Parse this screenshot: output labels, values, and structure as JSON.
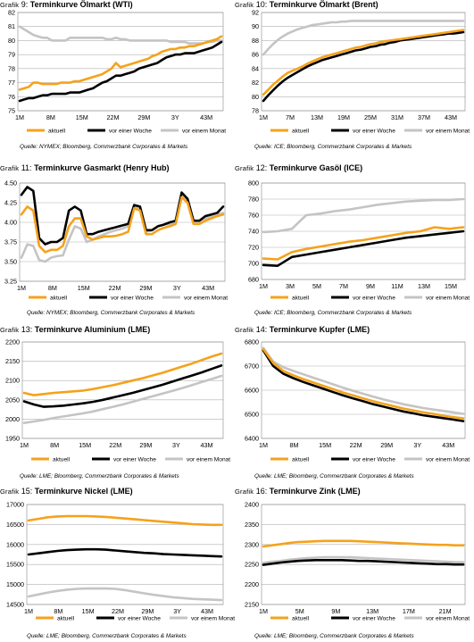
{
  "legend_labels": [
    "aktuell",
    "vor einer Woche",
    "vor einem Monat"
  ],
  "colors": {
    "aktuell": "#f5a21b",
    "vor einer Woche": "#000000",
    "vor einem Monat": "#c4c4c4",
    "grid": "#b0b0b0"
  },
  "panels": [
    {
      "id": "p9",
      "title_prefix": "Grafik",
      "title_number": "9:",
      "title_text": "Terminkurve Ölmarkt (WTI)",
      "source": "Quelle: NYMEX; Bloomberg, Commerzbank Corporates & Markets"
    },
    {
      "id": "p10",
      "title_prefix": "Grafik",
      "title_number": "10:",
      "title_text": "Terminkurve Ölmarkt (Brent)",
      "source": "Quelle: ICE; Bloomberg, Commerzbank Corporates & Markets"
    },
    {
      "id": "p11",
      "title_prefix": "Grafik",
      "title_number": "11:",
      "title_text": "Terminkurve Gasmarkt (Henry Hub)",
      "source": "Quelle: NYMEX; Bloomberg, Commerzbank Corporates & Markets"
    },
    {
      "id": "p12",
      "title_prefix": "Grafik",
      "title_number": "12:",
      "title_text": "Terminkurve Gasöl (ICE)",
      "source": "Quelle: ICE; Bloomberg, Commerzbank Corporates & Markets"
    },
    {
      "id": "p13",
      "title_prefix": "Grafik",
      "title_number": "13:",
      "title_text": "Terminkurve Aluminium (LME)",
      "source": "Quelle: LME; Bloomberg, Commerzbank Corporates & Markets"
    },
    {
      "id": "p14",
      "title_prefix": "Grafik",
      "title_number": "14:",
      "title_text": "Terminkurve Kupfer (LME)",
      "source": "Quelle: LME; Bloomberg, Commerzbank Corporates & Markets"
    },
    {
      "id": "p15",
      "title_prefix": "Grafik",
      "title_number": "15:",
      "title_text": "Terminkurve Nickel (LME)",
      "source": "Quelle: LME; Bloomberg, Commerzbank Corporates & Markets"
    },
    {
      "id": "p16",
      "title_prefix": "Grafik",
      "title_number": "16:",
      "title_text": "Terminkurve Zink (LME)",
      "source": "Quelle: LME; Bloomberg, Commerzbank Corporates & Markets"
    }
  ],
  "chart_data": [
    {
      "type": "line",
      "title": "Terminkurve Ölmarkt (WTI)",
      "x_ticks": [
        "1M",
        "8M",
        "15M",
        "22M",
        "29M",
        "3Y",
        "43M"
      ],
      "ylim": [
        75,
        82
      ],
      "y_ticks": [
        75,
        76,
        77,
        78,
        79,
        80,
        81,
        82
      ],
      "grid": true,
      "legend": "bottom",
      "series": [
        {
          "name": "aktuell",
          "values": [
            76.5,
            76.6,
            76.7,
            77.0,
            77.0,
            76.9,
            76.9,
            76.9,
            76.9,
            77.0,
            77.0,
            77.0,
            77.1,
            77.1,
            77.2,
            77.3,
            77.4,
            77.5,
            77.6,
            77.8,
            78.0,
            78.4,
            78.1,
            78.2,
            78.3,
            78.4,
            78.5,
            78.6,
            78.7,
            78.9,
            79.0,
            79.2,
            79.3,
            79.4,
            79.4,
            79.5,
            79.5,
            79.6,
            79.6,
            79.7,
            79.8,
            79.9,
            80.0,
            80.1,
            80.3
          ]
        },
        {
          "name": "vor einer Woche",
          "values": [
            75.7,
            75.8,
            75.9,
            75.9,
            76.0,
            76.1,
            76.1,
            76.2,
            76.2,
            76.2,
            76.2,
            76.3,
            76.3,
            76.3,
            76.4,
            76.5,
            76.6,
            76.8,
            77.0,
            77.1,
            77.3,
            77.5,
            77.5,
            77.6,
            77.7,
            77.8,
            78.0,
            78.1,
            78.2,
            78.3,
            78.4,
            78.6,
            78.8,
            78.9,
            79.0,
            79.0,
            79.1,
            79.1,
            79.1,
            79.2,
            79.3,
            79.4,
            79.5,
            79.7,
            79.9
          ]
        },
        {
          "name": "vor einem Monat",
          "values": [
            81.0,
            80.8,
            80.6,
            80.4,
            80.3,
            80.2,
            80.2,
            80.0,
            80.0,
            80.0,
            80.0,
            80.2,
            80.2,
            80.2,
            80.2,
            80.2,
            80.2,
            80.2,
            80.2,
            80.1,
            80.1,
            80.2,
            80.1,
            80.1,
            80.0,
            80.0,
            80.0,
            80.0,
            80.0,
            80.0,
            80.0,
            80.0,
            80.0,
            79.9,
            79.9,
            79.9,
            79.9,
            79.8,
            79.8,
            79.8,
            79.8,
            79.9,
            79.9,
            80.0,
            80.0
          ]
        }
      ]
    },
    {
      "type": "line",
      "title": "Terminkurve Ölmarkt (Brent)",
      "x_ticks": [
        "1M",
        "7M",
        "13M",
        "19M",
        "25M",
        "31M",
        "37M",
        "43M"
      ],
      "ylim": [
        78,
        92
      ],
      "y_ticks": [
        78,
        80,
        82,
        84,
        86,
        88,
        90,
        92
      ],
      "grid": true,
      "legend": "bottom",
      "series": [
        {
          "name": "aktuell",
          "values": [
            80.3,
            81.0,
            81.7,
            82.3,
            82.9,
            83.4,
            83.7,
            84.0,
            84.3,
            84.7,
            85.0,
            85.3,
            85.6,
            85.8,
            86.0,
            86.2,
            86.4,
            86.6,
            86.8,
            87.0,
            87.1,
            87.3,
            87.5,
            87.6,
            87.8,
            87.9,
            88.0,
            88.1,
            88.2,
            88.3,
            88.4,
            88.5,
            88.6,
            88.7,
            88.8,
            88.9,
            89.0,
            89.1,
            89.2,
            89.3,
            89.4,
            89.5
          ]
        },
        {
          "name": "vor einer Woche",
          "values": [
            79.4,
            80.2,
            80.9,
            81.6,
            82.2,
            82.7,
            83.1,
            83.5,
            83.9,
            84.3,
            84.6,
            84.9,
            85.2,
            85.4,
            85.6,
            85.8,
            86.0,
            86.2,
            86.4,
            86.6,
            86.7,
            86.9,
            87.1,
            87.2,
            87.4,
            87.5,
            87.7,
            87.8,
            88.0,
            88.1,
            88.2,
            88.3,
            88.4,
            88.5,
            88.6,
            88.7,
            88.8,
            88.9,
            89.0,
            89.0,
            89.1,
            89.2
          ]
        },
        {
          "name": "vor einem Monat",
          "values": [
            86.0,
            86.8,
            87.5,
            88.1,
            88.6,
            89.0,
            89.3,
            89.6,
            89.8,
            90.0,
            90.2,
            90.3,
            90.4,
            90.5,
            90.6,
            90.6,
            90.7,
            90.7,
            90.8,
            90.8,
            90.8,
            90.8,
            90.8,
            90.8,
            90.8,
            90.8,
            90.8,
            90.8,
            90.8,
            90.8,
            90.8,
            90.8,
            90.8,
            90.8,
            90.8,
            90.8,
            90.8,
            90.8,
            90.8,
            90.8,
            90.8,
            90.8
          ]
        }
      ]
    },
    {
      "type": "line",
      "title": "Terminkurve Gasmarkt (Henry Hub)",
      "x_ticks": [
        "1M",
        "8M",
        "15M",
        "22M",
        "29M",
        "3Y",
        "43M"
      ],
      "ylim": [
        3.25,
        4.5
      ],
      "y_ticks": [
        3.25,
        3.5,
        3.75,
        4.0,
        4.25,
        4.5
      ],
      "grid": true,
      "legend": "bottom",
      "series": [
        {
          "name": "aktuell",
          "values": [
            4.1,
            4.2,
            4.15,
            3.7,
            3.62,
            3.65,
            3.65,
            3.7,
            3.95,
            4.05,
            4.05,
            3.82,
            3.78,
            3.8,
            3.82,
            3.82,
            3.83,
            3.85,
            3.88,
            4.18,
            4.15,
            3.85,
            3.85,
            3.9,
            3.93,
            3.95,
            3.98,
            4.32,
            4.25,
            3.98,
            3.98,
            4.02,
            4.05,
            4.08,
            4.1
          ]
        },
        {
          "name": "vor einer Woche",
          "values": [
            4.35,
            4.45,
            4.4,
            3.8,
            3.72,
            3.75,
            3.75,
            3.8,
            4.15,
            4.2,
            4.15,
            3.85,
            3.85,
            3.88,
            3.9,
            3.92,
            3.94,
            3.96,
            3.98,
            4.22,
            4.2,
            3.9,
            3.9,
            3.95,
            3.97,
            4.0,
            4.02,
            4.38,
            4.3,
            4.02,
            4.02,
            4.08,
            4.1,
            4.12,
            4.2
          ]
        },
        {
          "name": "vor einem Monat",
          "values": [
            3.55,
            3.72,
            3.7,
            3.52,
            3.5,
            3.55,
            3.57,
            3.58,
            3.78,
            3.95,
            3.92,
            3.75,
            3.78,
            3.82,
            3.85,
            3.88,
            3.9,
            3.92,
            3.95,
            4.2,
            4.18,
            3.88,
            3.9,
            3.95,
            3.97,
            3.98,
            4.0,
            4.35,
            4.28,
            4.02,
            4.02,
            4.05,
            4.08,
            4.1,
            4.12
          ]
        }
      ]
    },
    {
      "type": "line",
      "title": "Terminkurve Gasöl (ICE)",
      "x_ticks": [
        "1M",
        "3M",
        "5M",
        "7M",
        "9M",
        "11M",
        "13M",
        "15M"
      ],
      "ylim": [
        680,
        800
      ],
      "y_ticks": [
        680,
        700,
        720,
        740,
        760,
        780,
        800
      ],
      "grid": true,
      "legend": "bottom",
      "series": [
        {
          "name": "aktuell",
          "values": [
            706,
            705,
            714,
            718,
            721,
            724,
            727,
            729,
            732,
            735,
            738,
            740,
            745,
            743,
            745
          ]
        },
        {
          "name": "vor einer Woche",
          "values": [
            698,
            697,
            708,
            711,
            714,
            717,
            720,
            723,
            726,
            729,
            732,
            734,
            736,
            738,
            740
          ]
        },
        {
          "name": "vor einem Monat",
          "values": [
            739,
            740,
            743,
            760,
            762,
            765,
            767,
            770,
            773,
            775,
            777,
            778,
            779,
            779,
            780
          ]
        }
      ]
    },
    {
      "type": "line",
      "title": "Terminkurve Aluminium (LME)",
      "x_ticks": [
        "1M",
        "8M",
        "15M",
        "22M",
        "29M",
        "3Y",
        "43M"
      ],
      "ylim": [
        1950,
        2200
      ],
      "y_ticks": [
        1950,
        2000,
        2050,
        2100,
        2150,
        2200
      ],
      "grid": true,
      "legend": "bottom",
      "series": [
        {
          "name": "aktuell",
          "values": [
            2068,
            2062,
            2065,
            2068,
            2070,
            2072,
            2074,
            2078,
            2083,
            2088,
            2094,
            2100,
            2106,
            2113,
            2120,
            2128,
            2136,
            2144,
            2153,
            2162,
            2170
          ]
        },
        {
          "name": "vor einer Woche",
          "values": [
            2046,
            2038,
            2032,
            2033,
            2035,
            2038,
            2041,
            2045,
            2050,
            2056,
            2062,
            2068,
            2075,
            2082,
            2089,
            2097,
            2105,
            2113,
            2121,
            2130,
            2139
          ]
        },
        {
          "name": "vor einem Monat",
          "values": [
            1990,
            1994,
            1998,
            2003,
            2007,
            2011,
            2015,
            2020,
            2026,
            2032,
            2038,
            2045,
            2052,
            2059,
            2066,
            2073,
            2080,
            2088,
            2096,
            2104,
            2112
          ]
        }
      ]
    },
    {
      "type": "line",
      "title": "Terminkurve Kupfer (LME)",
      "x_ticks": [
        "1M",
        "8M",
        "15M",
        "22M",
        "29M",
        "3Y",
        "43M"
      ],
      "ylim": [
        6400,
        6800
      ],
      "y_ticks": [
        6400,
        6500,
        6600,
        6700,
        6800
      ],
      "grid": true,
      "legend": "bottom",
      "series": [
        {
          "name": "aktuell",
          "values": [
            6770,
            6712,
            6680,
            6662,
            6646,
            6632,
            6618,
            6604,
            6590,
            6578,
            6566,
            6554,
            6544,
            6534,
            6524,
            6516,
            6508,
            6502,
            6494,
            6488,
            6483
          ]
        },
        {
          "name": "vor einer Woche",
          "values": [
            6765,
            6700,
            6668,
            6650,
            6634,
            6620,
            6606,
            6592,
            6578,
            6566,
            6554,
            6542,
            6532,
            6522,
            6512,
            6504,
            6496,
            6490,
            6484,
            6478,
            6472
          ]
        },
        {
          "name": "vor einem Monat",
          "values": [
            6775,
            6718,
            6695,
            6680,
            6666,
            6652,
            6638,
            6624,
            6610,
            6597,
            6585,
            6573,
            6562,
            6552,
            6542,
            6534,
            6526,
            6520,
            6514,
            6508,
            6502
          ]
        }
      ]
    },
    {
      "type": "line",
      "title": "Terminkurve Nickel (LME)",
      "x_ticks": [
        "1M",
        "8M",
        "15M",
        "22M",
        "29M",
        "3Y",
        "43M"
      ],
      "ylim": [
        14500,
        17000
      ],
      "y_ticks": [
        14500,
        15000,
        15500,
        16000,
        16500,
        17000
      ],
      "grid": true,
      "legend": "bottom",
      "series": [
        {
          "name": "aktuell",
          "values": [
            16600,
            16640,
            16680,
            16700,
            16710,
            16710,
            16710,
            16700,
            16690,
            16670,
            16650,
            16630,
            16610,
            16590,
            16570,
            16550,
            16530,
            16510,
            16500,
            16490,
            16490
          ]
        },
        {
          "name": "vor einer Woche",
          "values": [
            15750,
            15780,
            15810,
            15840,
            15860,
            15870,
            15880,
            15880,
            15870,
            15850,
            15830,
            15810,
            15790,
            15780,
            15760,
            15750,
            15740,
            15730,
            15720,
            15710,
            15700
          ]
        },
        {
          "name": "vor einem Monat",
          "values": [
            14700,
            14750,
            14800,
            14840,
            14870,
            14890,
            14900,
            14900,
            14900,
            14890,
            14860,
            14820,
            14780,
            14740,
            14710,
            14680,
            14660,
            14640,
            14630,
            14620,
            14610
          ]
        }
      ]
    },
    {
      "type": "line",
      "title": "Terminkurve Zink (LME)",
      "x_ticks": [
        "1M",
        "5M",
        "9M",
        "13M",
        "17M",
        "21M"
      ],
      "ylim": [
        2150,
        2400
      ],
      "y_ticks": [
        2150,
        2200,
        2250,
        2300,
        2350,
        2400
      ],
      "grid": true,
      "legend": "bottom",
      "series": [
        {
          "name": "aktuell",
          "values": [
            2295,
            2298,
            2301,
            2304,
            2306,
            2307,
            2308,
            2309,
            2309,
            2309,
            2309,
            2308,
            2307,
            2306,
            2305,
            2304,
            2303,
            2302,
            2301,
            2300,
            2299,
            2299,
            2298,
            2298
          ]
        },
        {
          "name": "vor einer Woche",
          "values": [
            2249,
            2252,
            2255,
            2257,
            2259,
            2260,
            2261,
            2261,
            2261,
            2261,
            2260,
            2259,
            2259,
            2258,
            2257,
            2256,
            2255,
            2254,
            2253,
            2252,
            2251,
            2251,
            2250,
            2250
          ]
        },
        {
          "name": "vor einem Monat",
          "values": [
            2254,
            2257,
            2259,
            2262,
            2264,
            2266,
            2267,
            2268,
            2268,
            2268,
            2268,
            2267,
            2266,
            2265,
            2264,
            2263,
            2262,
            2261,
            2260,
            2259,
            2258,
            2257,
            2256,
            2256
          ]
        }
      ]
    }
  ]
}
